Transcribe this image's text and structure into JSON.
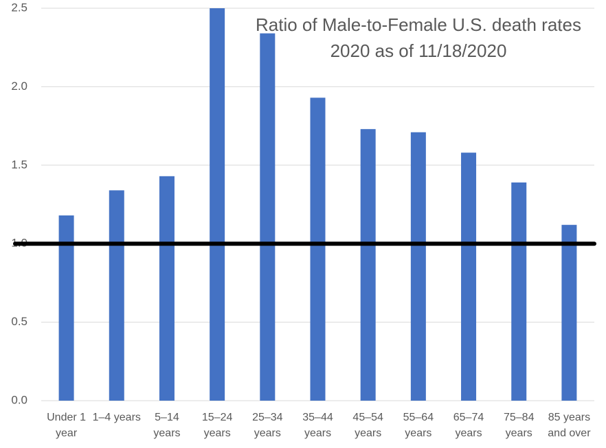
{
  "chart_data": {
    "type": "bar",
    "title": "Ratio of Male-to-Female U.S. death rates",
    "subtitle": "2020 as of 11/18/2020",
    "categories": [
      "Under 1 year",
      "1–4 years",
      "5–14 years",
      "15–24 years",
      "25–34 years",
      "35–44 years",
      "45–54 years",
      "55–64 years",
      "65–74 years",
      "75–84 years",
      "85 years and over"
    ],
    "values": [
      1.18,
      1.34,
      1.43,
      2.5,
      2.34,
      1.93,
      1.73,
      1.71,
      1.58,
      1.39,
      1.12
    ],
    "color": "#4472c4",
    "ylim": [
      0,
      2.5
    ],
    "yticks": [
      {
        "value": 0,
        "label": "0.0"
      },
      0.5,
      {
        "value": 1,
        "label": "1.0"
      },
      1.5,
      {
        "value": 2,
        "label": "2.0"
      },
      2.5
    ],
    "grid": true,
    "reference_line": {
      "value": 1,
      "color": "#000000"
    }
  }
}
